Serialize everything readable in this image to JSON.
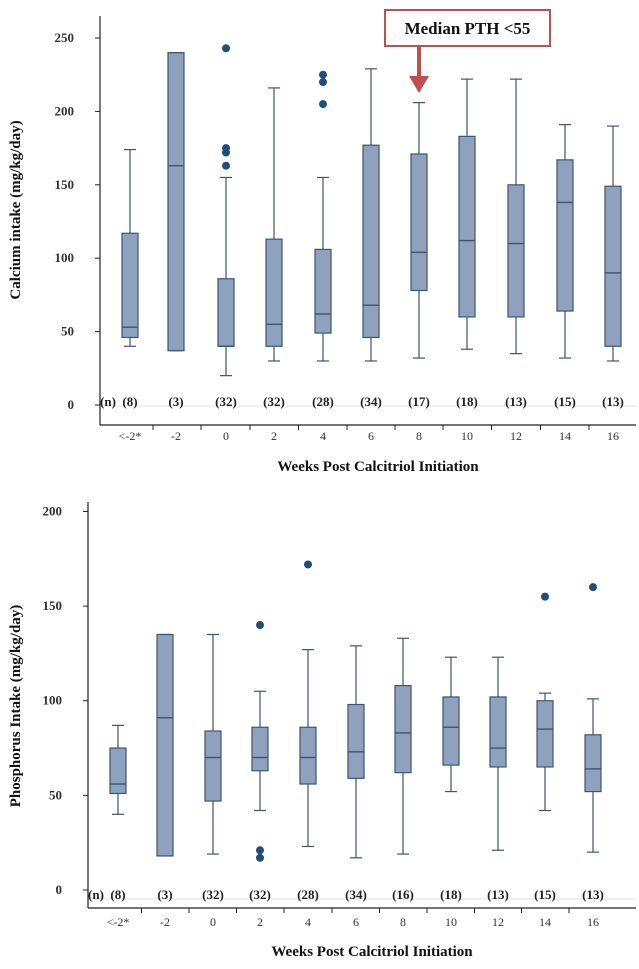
{
  "chart_data": [
    {
      "type": "boxplot",
      "ylabel": "Calcium intake (mg/kg/day)",
      "xlabel": "Weeks Post Calcitriol Initiation",
      "yticks": [
        0,
        50,
        100,
        150,
        200,
        250
      ],
      "ylim": [
        0,
        265
      ],
      "categories": [
        "<-2*",
        "-2",
        "0",
        "2",
        "4",
        "6",
        "8",
        "10",
        "12",
        "14",
        "16"
      ],
      "n_prefix": "(n)",
      "n": [
        "(8)",
        "(3)",
        "(32)",
        "(32)",
        "(28)",
        "(34)",
        "(17)",
        "(18)",
        "(13)",
        "(15)",
        "(13)"
      ],
      "boxes": [
        {
          "min": 40,
          "q1": 46,
          "median": 53,
          "q3": 117,
          "max": 174,
          "outliers": []
        },
        {
          "min": 37,
          "q1": 37,
          "median": 163,
          "q3": 240,
          "max": 240,
          "outliers": []
        },
        {
          "min": 20,
          "q1": 40,
          "median": 40,
          "q3": 86,
          "max": 155,
          "outliers": [
            163,
            172,
            175,
            243
          ]
        },
        {
          "min": 30,
          "q1": 40,
          "median": 55,
          "q3": 113,
          "max": 216,
          "outliers": []
        },
        {
          "min": 30,
          "q1": 49,
          "median": 62,
          "q3": 106,
          "max": 155,
          "outliers": [
            205,
            220,
            225
          ]
        },
        {
          "min": 30,
          "q1": 46,
          "median": 68,
          "q3": 177,
          "max": 229,
          "outliers": []
        },
        {
          "min": 32,
          "q1": 78,
          "median": 104,
          "q3": 171,
          "max": 206,
          "outliers": []
        },
        {
          "min": 38,
          "q1": 60,
          "median": 112,
          "q3": 183,
          "max": 222,
          "outliers": []
        },
        {
          "min": 35,
          "q1": 60,
          "median": 110,
          "q3": 150,
          "max": 222,
          "outliers": []
        },
        {
          "min": 32,
          "q1": 64,
          "median": 138,
          "q3": 167,
          "max": 191,
          "outliers": []
        },
        {
          "min": 30,
          "q1": 40,
          "median": 90,
          "q3": 149,
          "max": 190,
          "outliers": []
        }
      ],
      "annotation": {
        "text": "Median PTH <55",
        "category": "8"
      },
      "colors": {
        "box_fill": "#8fa2bd",
        "box_stroke": "#3d5473",
        "outlier": "#1f4e79",
        "annotation": "#c0504d"
      }
    },
    {
      "type": "boxplot",
      "ylabel": "Phosphorus Intake (mg/kg/day)",
      "xlabel": "Weeks Post Calcitriol Initiation",
      "yticks": [
        0,
        50,
        100,
        150,
        200
      ],
      "ylim": [
        0,
        205
      ],
      "categories": [
        "<-2*",
        "-2",
        "0",
        "2",
        "4",
        "6",
        "8",
        "10",
        "12",
        "14",
        "16"
      ],
      "n_prefix": "(n)",
      "n": [
        "(8)",
        "(3)",
        "(32)",
        "(32)",
        "(28)",
        "(34)",
        "(16)",
        "(18)",
        "(13)",
        "(15)",
        "(13)"
      ],
      "boxes": [
        {
          "min": 40,
          "q1": 51,
          "median": 56,
          "q3": 75,
          "max": 87,
          "outliers": []
        },
        {
          "min": 18,
          "q1": 18,
          "median": 91,
          "q3": 135,
          "max": 135,
          "outliers": []
        },
        {
          "min": 19,
          "q1": 47,
          "median": 70,
          "q3": 84,
          "max": 135,
          "outliers": []
        },
        {
          "min": 42,
          "q1": 63,
          "median": 70,
          "q3": 86,
          "max": 105,
          "outliers": [
            17,
            21,
            140
          ]
        },
        {
          "min": 23,
          "q1": 56,
          "median": 70,
          "q3": 86,
          "max": 127,
          "outliers": [
            172
          ]
        },
        {
          "min": 17,
          "q1": 59,
          "median": 73,
          "q3": 98,
          "max": 129,
          "outliers": []
        },
        {
          "min": 19,
          "q1": 62,
          "median": 83,
          "q3": 108,
          "max": 133,
          "outliers": []
        },
        {
          "min": 52,
          "q1": 66,
          "median": 86,
          "q3": 102,
          "max": 123,
          "outliers": []
        },
        {
          "min": 21,
          "q1": 65,
          "median": 75,
          "q3": 102,
          "max": 123,
          "outliers": []
        },
        {
          "min": 42,
          "q1": 65,
          "median": 85,
          "q3": 100,
          "max": 104,
          "outliers": [
            155
          ]
        },
        {
          "min": 20,
          "q1": 52,
          "median": 64,
          "q3": 82,
          "max": 101,
          "outliers": [
            160
          ]
        }
      ],
      "colors": {
        "box_fill": "#8fa2bd",
        "box_stroke": "#3d5473",
        "outlier": "#1f4e79"
      }
    }
  ]
}
